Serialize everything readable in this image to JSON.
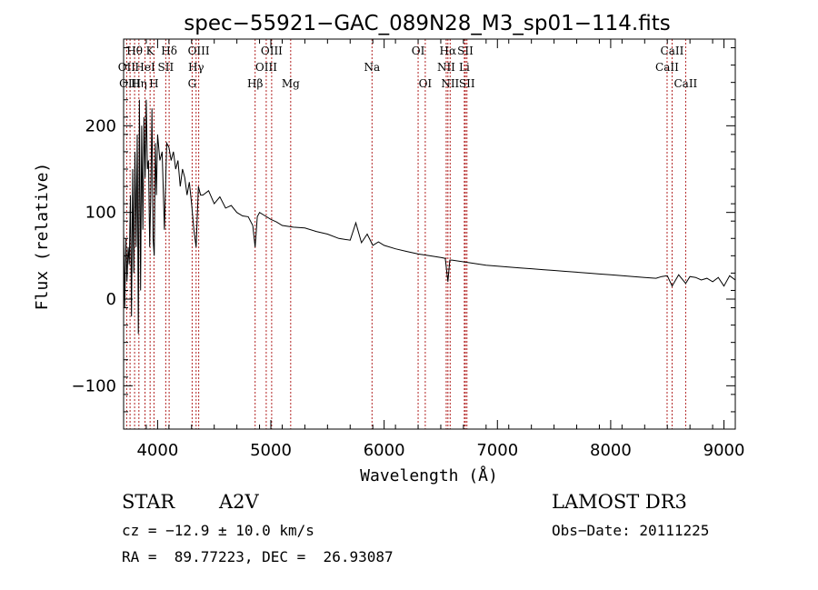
{
  "chart_data": {
    "type": "line",
    "title": "spec−55921−GAC_089N28_M3_sp01−114.fits",
    "xlabel": "Wavelength (Å)",
    "ylabel": "Flux (relative)",
    "xlim": [
      3700,
      9100
    ],
    "ylim": [
      -150,
      300
    ],
    "xticks": [
      4000,
      5000,
      6000,
      7000,
      8000,
      9000
    ],
    "xtick_labels": [
      "4000",
      "5000",
      "6000",
      "7000",
      "8000",
      "9000"
    ],
    "yticks": [
      -100,
      0,
      100,
      200
    ],
    "ytick_labels": [
      "−100",
      "0",
      "100",
      "200"
    ],
    "spectrum": {
      "x": [
        3700,
        3710,
        3720,
        3730,
        3740,
        3750,
        3760,
        3770,
        3780,
        3790,
        3800,
        3810,
        3820,
        3830,
        3840,
        3850,
        3860,
        3870,
        3880,
        3890,
        3900,
        3910,
        3920,
        3930,
        3940,
        3950,
        3960,
        3970,
        3980,
        3990,
        4000,
        4020,
        4040,
        4060,
        4080,
        4100,
        4120,
        4140,
        4160,
        4180,
        4200,
        4220,
        4240,
        4260,
        4280,
        4300,
        4320,
        4340,
        4360,
        4380,
        4400,
        4450,
        4500,
        4550,
        4600,
        4650,
        4700,
        4750,
        4800,
        4840,
        4861,
        4880,
        4900,
        4950,
        5000,
        5050,
        5100,
        5200,
        5300,
        5400,
        5500,
        5600,
        5700,
        5750,
        5800,
        5850,
        5900,
        5950,
        6000,
        6100,
        6200,
        6300,
        6400,
        6500,
        6540,
        6563,
        6580,
        6600,
        6700,
        6800,
        6900,
        7000,
        7100,
        7200,
        7300,
        7400,
        7500,
        7600,
        7700,
        7800,
        7900,
        8000,
        8100,
        8200,
        8300,
        8400,
        8450,
        8500,
        8542,
        8600,
        8662,
        8700,
        8750,
        8800,
        8850,
        8900,
        8950,
        9000,
        9050,
        9100
      ],
      "y": [
        80,
        -10,
        70,
        20,
        60,
        40,
        120,
        -20,
        150,
        30,
        170,
        60,
        190,
        -40,
        230,
        10,
        200,
        80,
        210,
        140,
        230,
        150,
        160,
        60,
        120,
        220,
        70,
        50,
        180,
        120,
        190,
        160,
        170,
        80,
        180,
        175,
        160,
        170,
        150,
        160,
        130,
        150,
        140,
        120,
        135,
        110,
        80,
        60,
        130,
        120,
        120,
        125,
        110,
        118,
        105,
        108,
        100,
        96,
        95,
        85,
        60,
        95,
        100,
        96,
        92,
        89,
        85,
        83,
        82,
        78,
        75,
        70,
        68,
        88,
        65,
        75,
        62,
        66,
        62,
        58,
        55,
        52,
        50,
        48,
        47,
        20,
        45,
        45,
        43,
        41,
        39,
        38,
        37,
        36,
        35,
        34,
        33,
        32,
        31,
        30,
        29,
        28,
        27,
        26,
        25,
        24,
        26,
        27,
        15,
        28,
        18,
        26,
        25,
        22,
        24,
        20,
        25,
        15,
        27,
        22
      ]
    },
    "lines": [
      {
        "name": "Hθ",
        "wavelength": 3797,
        "row": 0
      },
      {
        "name": "K",
        "wavelength": 3934,
        "row": 0
      },
      {
        "name": "Hδ",
        "wavelength": 4102,
        "row": 0
      },
      {
        "name": "OIII",
        "wavelength": 4363,
        "row": 0
      },
      {
        "name": "OIII",
        "wavelength": 5007,
        "row": 0
      },
      {
        "name": "OI",
        "wavelength": 6300,
        "row": 0
      },
      {
        "name": "Hα",
        "wavelength": 6563,
        "row": 0
      },
      {
        "name": "SII",
        "wavelength": 6717,
        "row": 0
      },
      {
        "name": "CaII",
        "wavelength": 8542,
        "row": 0
      },
      {
        "name": "OII",
        "wavelength": 3727,
        "row": 1
      },
      {
        "name": "HeI",
        "wavelength": 3889,
        "row": 1
      },
      {
        "name": "SII",
        "wavelength": 4072,
        "row": 1
      },
      {
        "name": "Hγ",
        "wavelength": 4340,
        "row": 1
      },
      {
        "name": "OIII",
        "wavelength": 4959,
        "row": 1
      },
      {
        "name": "Na",
        "wavelength": 5893,
        "row": 1
      },
      {
        "name": "NII",
        "wavelength": 6548,
        "row": 1
      },
      {
        "name": "Li",
        "wavelength": 6708,
        "row": 1
      },
      {
        "name": "CaII",
        "wavelength": 8498,
        "row": 1
      },
      {
        "name": "OIII",
        "wavelength": 3757,
        "row": 2
      },
      {
        "name": "Hη",
        "wavelength": 3835,
        "row": 2
      },
      {
        "name": "H",
        "wavelength": 3968,
        "row": 2
      },
      {
        "name": "G",
        "wavelength": 4305,
        "row": 2
      },
      {
        "name": "Hβ",
        "wavelength": 4861,
        "row": 2
      },
      {
        "name": "Mg",
        "wavelength": 5175,
        "row": 2
      },
      {
        "name": "OI",
        "wavelength": 6363,
        "row": 2
      },
      {
        "name": "NII",
        "wavelength": 6583,
        "row": 2
      },
      {
        "name": "SII",
        "wavelength": 6731,
        "row": 2
      },
      {
        "name": "CaII",
        "wavelength": 8662,
        "row": 2
      }
    ],
    "grid": false,
    "line_color": "#000000",
    "marker_color": "#b22222"
  },
  "info": {
    "object_class": "STAR",
    "subclass": "A2V",
    "survey": "LAMOST DR3",
    "redshift_text": "cz = −12.9 ± 10.0 km/s",
    "obs_date_text": "Obs−Date: 20111225",
    "coords_text": "RA =  89.77223, DEC =  26.93087"
  }
}
